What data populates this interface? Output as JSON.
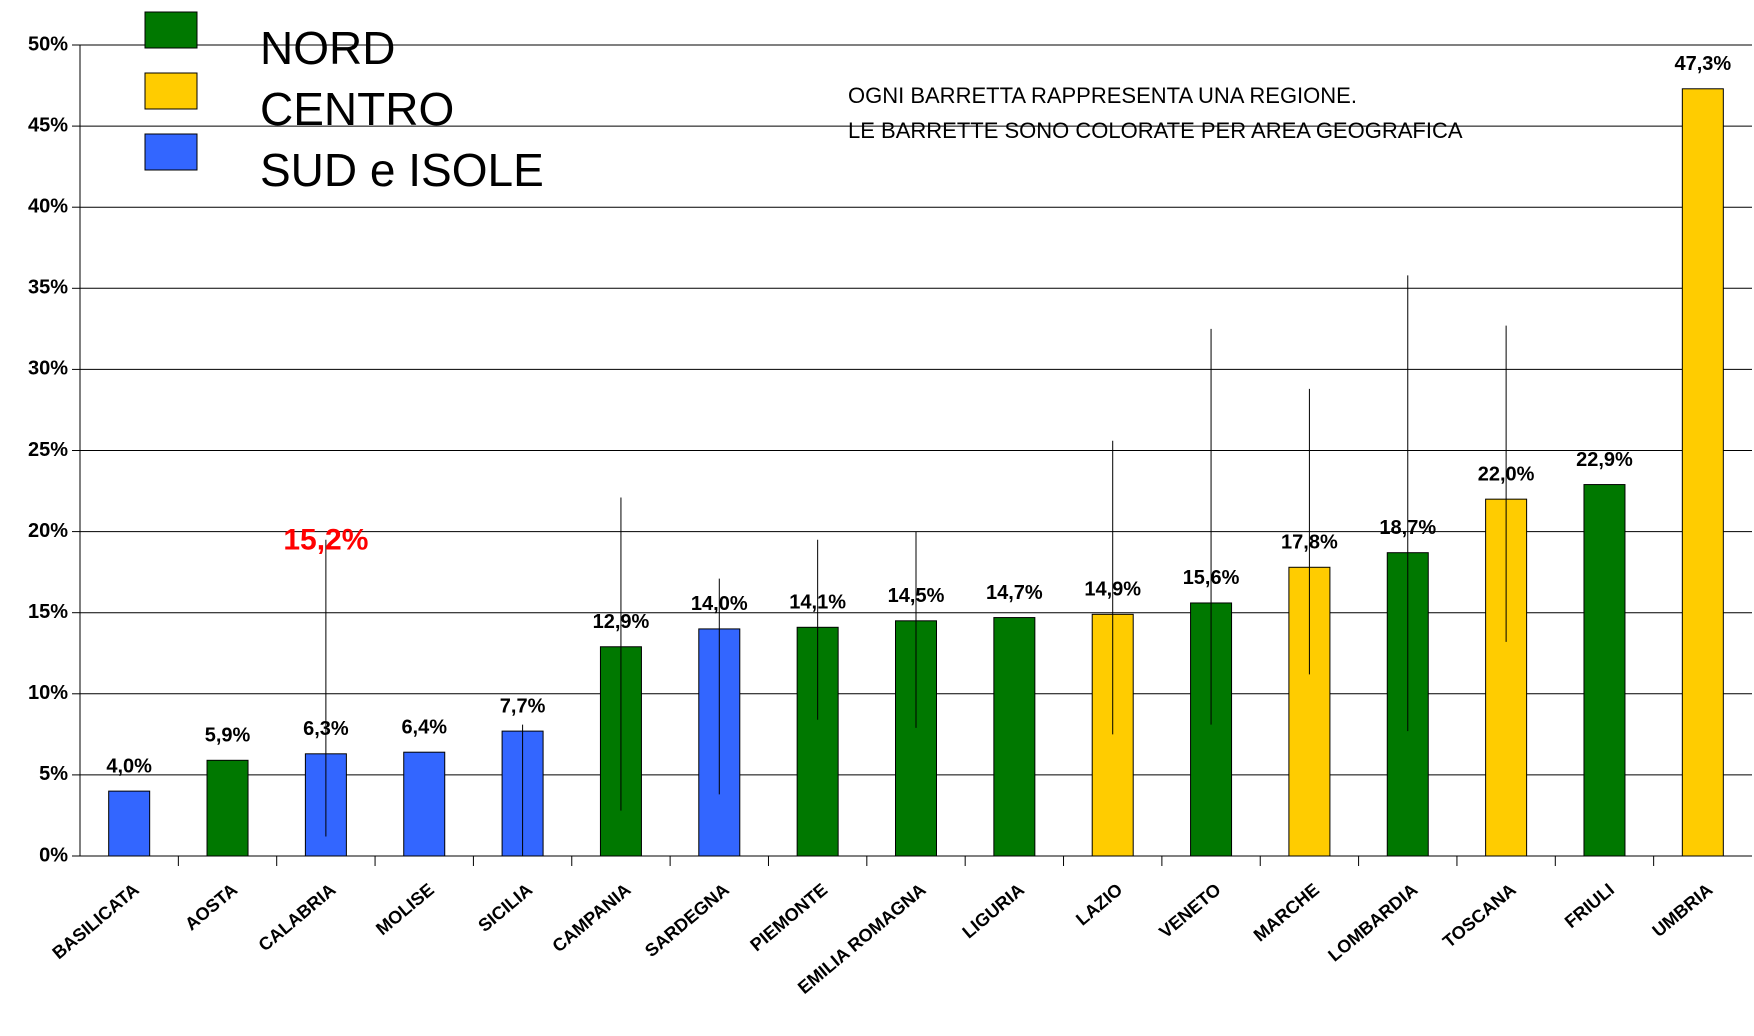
{
  "chart_data": {
    "type": "bar",
    "legend": [
      {
        "name": "NORD",
        "color": "#007800"
      },
      {
        "name": "CENTRO",
        "color": "#ffcc00"
      },
      {
        "name": "SUD e ISOLE",
        "color": "#3366ff"
      }
    ],
    "annotation": [
      "OGNI BARRETTA RAPPRESENTA UNA REGIONE.",
      "LE BARRETTE SONO COLORATE PER AREA GEOGRAFICA"
    ],
    "highlight_label": "15,2%",
    "categories": [
      "BASILICATA",
      "AOSTA",
      "CALABRIA",
      "MOLISE",
      "SICILIA",
      "CAMPANIA",
      "SARDEGNA",
      "PIEMONTE",
      "EMILIA ROMAGNA",
      "LIGURIA",
      "LAZIO",
      "VENETO",
      "MARCHE",
      "LOMBARDIA",
      "TOSCANA",
      "FRIULI",
      "UMBRIA"
    ],
    "values": [
      4.0,
      5.9,
      6.3,
      6.4,
      7.7,
      12.9,
      14.0,
      14.1,
      14.5,
      14.7,
      14.9,
      15.6,
      17.8,
      18.7,
      22.0,
      22.9,
      47.3
    ],
    "value_labels": [
      "4,0%",
      "5,9%",
      "6,3%",
      "6,4%",
      "7,7%",
      "12,9%",
      "14,0%",
      "14,1%",
      "14,5%",
      "14,7%",
      "14,9%",
      "15,6%",
      "17,8%",
      "18,7%",
      "22,0%",
      "22,9%",
      "47,3%"
    ],
    "colors": [
      "#3366ff",
      "#007800",
      "#3366ff",
      "#3366ff",
      "#3366ff",
      "#007800",
      "#3366ff",
      "#007800",
      "#007800",
      "#007800",
      "#ffcc00",
      "#007800",
      "#ffcc00",
      "#007800",
      "#ffcc00",
      "#007800",
      "#ffcc00"
    ],
    "error_low": [
      null,
      null,
      1.2,
      null,
      0.0,
      2.8,
      3.8,
      8.4,
      7.9,
      null,
      7.5,
      8.1,
      11.2,
      7.7,
      13.2,
      null,
      null
    ],
    "error_high": [
      null,
      null,
      19.5,
      null,
      8.1,
      22.1,
      17.1,
      19.5,
      20.0,
      null,
      25.6,
      32.5,
      28.8,
      35.8,
      32.7,
      null,
      null
    ],
    "ylim": [
      0,
      50
    ],
    "yticks": [
      {
        "value": 0,
        "label": "0%"
      },
      {
        "value": 5,
        "label": "5%"
      },
      {
        "value": 10,
        "label": "10%"
      },
      {
        "value": 15,
        "label": "15%"
      },
      {
        "value": 20,
        "label": "20%"
      },
      {
        "value": 25,
        "label": "25%"
      },
      {
        "value": 30,
        "label": "30%"
      },
      {
        "value": 35,
        "label": "35%"
      },
      {
        "value": 40,
        "label": "40%"
      },
      {
        "value": 45,
        "label": "45%"
      },
      {
        "value": 50,
        "label": "50%"
      }
    ],
    "grid": true
  }
}
